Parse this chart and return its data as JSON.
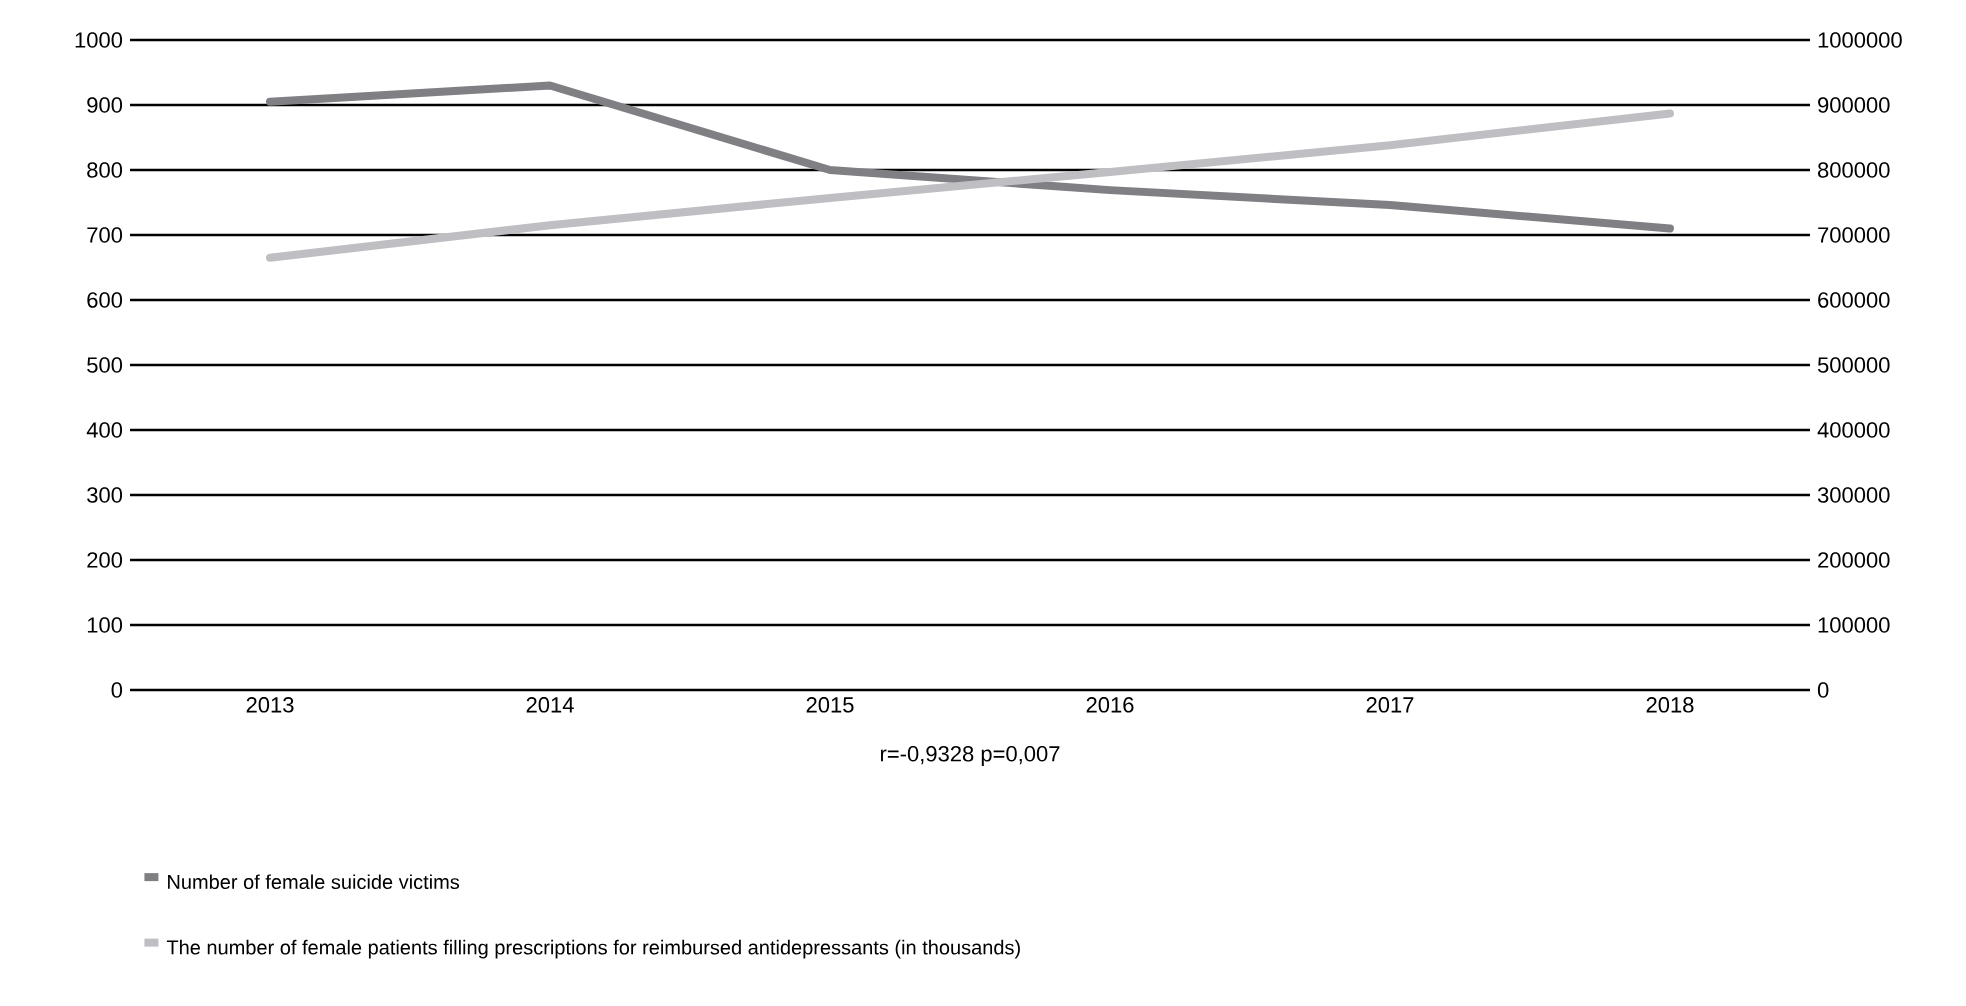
{
  "chart_data": {
    "type": "line",
    "categories": [
      "2013",
      "2014",
      "2015",
      "2016",
      "2017",
      "2018"
    ],
    "series": [
      {
        "name": "Number of female suicide victims",
        "color": "#7f7f84",
        "values": [
          905,
          930,
          800,
          769,
          746,
          710
        ]
      },
      {
        "name": "The number of female patients filling prescriptions for reimbursed antidepressants  (in thousands)",
        "color": "#bfbfc3",
        "axis": "y2",
        "values": [
          665000,
          715000,
          757000,
          797000,
          838000,
          887000
        ]
      }
    ],
    "ylim": [
      0,
      1000
    ],
    "yticks": [
      0,
      100,
      200,
      300,
      400,
      500,
      600,
      700,
      800,
      900,
      1000
    ],
    "y2lim": [
      0,
      1000000
    ],
    "y2ticks": [
      0,
      100000,
      200000,
      300000,
      400000,
      500000,
      600000,
      700000,
      800000,
      900000,
      1000000
    ],
    "annotations": [
      "r=-0,9328 p=0,007"
    ],
    "grid": "y",
    "legend": "bottom",
    "marker": "none",
    "line_style": "solid"
  }
}
